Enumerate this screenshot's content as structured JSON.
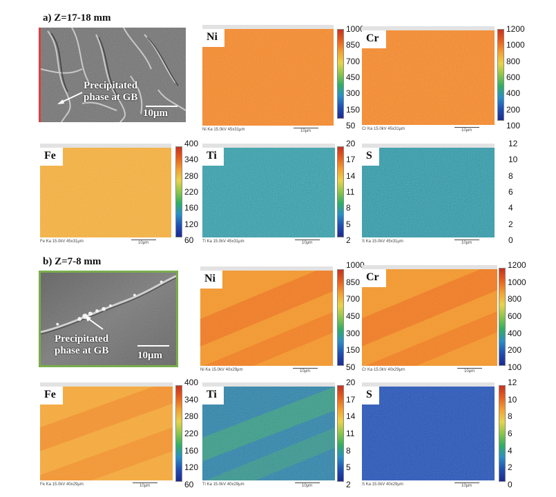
{
  "section_a": {
    "title": "a)  Z=17-18 mm",
    "sem": {
      "annotation_line1": "Precipitated",
      "annotation_line2": "phase at GB",
      "scale": "10μm",
      "border_color": "#e23b3b"
    },
    "maps": [
      {
        "element": "Ni",
        "caption": "Ni Ka 15.0kV 45x31μm",
        "scale": "10μm",
        "ticks": [
          "1000",
          "850",
          "700",
          "450",
          "300",
          "150",
          "50"
        ]
      },
      {
        "element": "Cr",
        "caption": "Cr Ka 15.0kV 45x31μm",
        "scale": "10μm",
        "ticks": [
          "1200",
          "1000",
          "800",
          "600",
          "400",
          "200",
          "100"
        ]
      },
      {
        "element": "Fe",
        "caption": "Fe Ka 15.0kV 45x31μm",
        "scale": "10μm",
        "ticks": [
          "400",
          "340",
          "280",
          "220",
          "160",
          "120",
          "60"
        ]
      },
      {
        "element": "Ti",
        "caption": "Ti Ka 15.0kV 45x31μm",
        "scale": "10μm",
        "ticks": [
          "20",
          "17",
          "14",
          "11",
          "8",
          "5",
          "2"
        ]
      },
      {
        "element": "S",
        "caption": "S Ka 15.0kV 45x31μm",
        "scale": "10μm",
        "ticks": [
          "12",
          "10",
          "8",
          "6",
          "4",
          "2",
          "0"
        ]
      }
    ]
  },
  "section_b": {
    "title": "b)  Z=7-8 mm",
    "sem": {
      "annotation_line1": "Precipitated",
      "annotation_line2": "phase at GB",
      "scale": "10μm",
      "border_color": "#79ad4a"
    },
    "maps": [
      {
        "element": "Ni",
        "caption": "Ni Ka 15.0kV 40x29μm",
        "scale": "10μm",
        "ticks": [
          "1000",
          "850",
          "700",
          "450",
          "300",
          "150",
          "50"
        ]
      },
      {
        "element": "Cr",
        "caption": "Cr Ka 15.0kV 40x29μm",
        "scale": "10μm",
        "ticks": [
          "1200",
          "1000",
          "800",
          "600",
          "400",
          "200",
          "100"
        ]
      },
      {
        "element": "Fe",
        "caption": "Fe Ka 15.0kV 40x29μm",
        "scale": "10μm",
        "ticks": [
          "400",
          "340",
          "280",
          "220",
          "160",
          "120",
          "60"
        ]
      },
      {
        "element": "Ti",
        "caption": "Ti Ka 15.0kV 40x29μm",
        "scale": "10μm",
        "ticks": [
          "20",
          "17",
          "14",
          "11",
          "8",
          "5",
          "2"
        ]
      },
      {
        "element": "S",
        "caption": "S Ka 15.0kV 40x29μm",
        "scale": "10μm",
        "ticks": [
          "12",
          "10",
          "8",
          "6",
          "4",
          "2",
          "0"
        ]
      }
    ]
  },
  "colors": {
    "colormap": [
      "#c8321e",
      "#e8601c",
      "#f3a130",
      "#e8d34a",
      "#8cc64a",
      "#2fae62",
      "#2a8fc7",
      "#1f4fb5",
      "#1c2a8f"
    ],
    "orange_map": "#f07a2a",
    "yellow_orange_map": "#f2a33a",
    "blue_map": "#2a56b8",
    "green_blue_map": "#3f8fa6"
  }
}
